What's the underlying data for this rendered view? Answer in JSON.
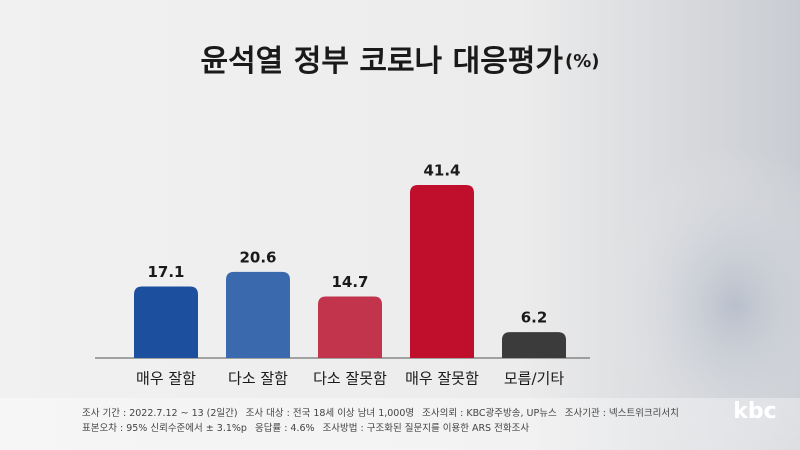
{
  "chart_data": {
    "type": "bar",
    "title": "윤석열 정부 코로나 대응평가",
    "unit": "(%)",
    "categories": [
      "매우 잘함",
      "다소 잘함",
      "다소 잘못함",
      "매우 잘못함",
      "모름/기타"
    ],
    "values": [
      17.1,
      20.6,
      14.7,
      41.4,
      6.2
    ],
    "colors": [
      "#1d4f9f",
      "#3b69ad",
      "#c1344c",
      "#bf0f2c",
      "#3b3b3b"
    ],
    "notes": [
      [
        "조사 기간 : 2022.7.12 ~ 13 (2일간)",
        "조사 대상 : 전국 18세 이상 남녀 1,000명",
        "조사의뢰 : KBC광주방송, UP뉴스",
        "조사기관 : 넥스트위크리서치"
      ],
      [
        "표본오차 : 95% 신뢰수준에서 ± 3.1%p",
        "응답률 : 4.6%",
        "조사방법 : 구조화된 질문지를 이용한 ARS 전화조사"
      ]
    ],
    "logo": "kbc"
  }
}
